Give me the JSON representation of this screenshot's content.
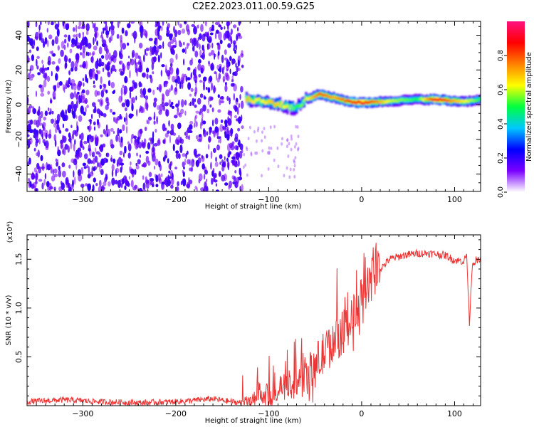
{
  "title": "C2E2.2023.011.00.59.G25",
  "chart_data": [
    {
      "type": "heatmap",
      "xlabel": "Height of straight line (km)",
      "ylabel": "Frequency (Hz)",
      "xlim": [
        -360,
        128
      ],
      "ylim": [
        -50,
        48
      ],
      "x_ticks": [
        -300,
        -200,
        -100,
        0,
        100
      ],
      "y_ticks": [
        -40,
        -20,
        0,
        20,
        40
      ],
      "colorbar": {
        "label": "Normalized spectral amplitude",
        "range": [
          0.0,
          1.0
        ],
        "ticks": [
          0.0,
          0.2,
          0.4,
          0.6,
          0.8
        ],
        "colors": [
          "#ffffff",
          "#7b00ff",
          "#0000ff",
          "#00c8ff",
          "#00ff40",
          "#ffff00",
          "#ff8000",
          "#ff0000",
          "#ff1080"
        ]
      },
      "noise_region_x": [
        -360,
        -128
      ],
      "ridge": [
        {
          "x": -125,
          "y": 3,
          "amp": 0.7
        },
        {
          "x": -110,
          "y": 2,
          "amp": 0.6
        },
        {
          "x": -95,
          "y": 1,
          "amp": 0.7
        },
        {
          "x": -80,
          "y": -1,
          "amp": 0.6
        },
        {
          "x": -70,
          "y": -2,
          "amp": 0.5
        },
        {
          "x": -60,
          "y": 3,
          "amp": 0.6
        },
        {
          "x": -45,
          "y": 6,
          "amp": 0.8
        },
        {
          "x": -30,
          "y": 4,
          "amp": 0.7
        },
        {
          "x": -15,
          "y": 2,
          "amp": 0.8
        },
        {
          "x": 0,
          "y": 1,
          "amp": 0.9
        },
        {
          "x": 30,
          "y": 2,
          "amp": 0.6
        },
        {
          "x": 60,
          "y": 3,
          "amp": 0.5
        },
        {
          "x": 80,
          "y": 3,
          "amp": 0.9
        },
        {
          "x": 100,
          "y": 2,
          "amp": 0.7
        },
        {
          "x": 115,
          "y": 2,
          "amp": 0.6
        },
        {
          "x": 128,
          "y": 3,
          "amp": 0.5
        }
      ]
    },
    {
      "type": "line",
      "xlabel": "Height of straight line (km)",
      "ylabel": "SNR (10 * v/v)",
      "y_multiplier": "(x10⁴)",
      "xlim": [
        -360,
        128
      ],
      "ylim": [
        0,
        1.75
      ],
      "x_ticks": [
        -300,
        -200,
        -100,
        0,
        100
      ],
      "y_ticks": [
        0.5,
        1.0,
        1.5
      ],
      "color": "#ee3333",
      "series": [
        {
          "x": [
            -360,
            -320,
            -280,
            -240,
            -200,
            -160,
            -140,
            -125,
            -110,
            -95,
            -80,
            -65,
            -55,
            -45,
            -35,
            -20,
            -10,
            0,
            10,
            20,
            30,
            45,
            60,
            75,
            90,
            100,
            110,
            113,
            116,
            119,
            122,
            128
          ],
          "values": [
            0.04,
            0.06,
            0.04,
            0.03,
            0.04,
            0.07,
            0.04,
            0.03,
            0.08,
            0.14,
            0.19,
            0.27,
            0.34,
            0.48,
            0.6,
            0.75,
            0.9,
            1.1,
            1.28,
            1.4,
            1.5,
            1.54,
            1.56,
            1.56,
            1.54,
            1.49,
            1.48,
            1.55,
            0.85,
            1.45,
            1.48,
            1.49
          ]
        }
      ]
    }
  ]
}
